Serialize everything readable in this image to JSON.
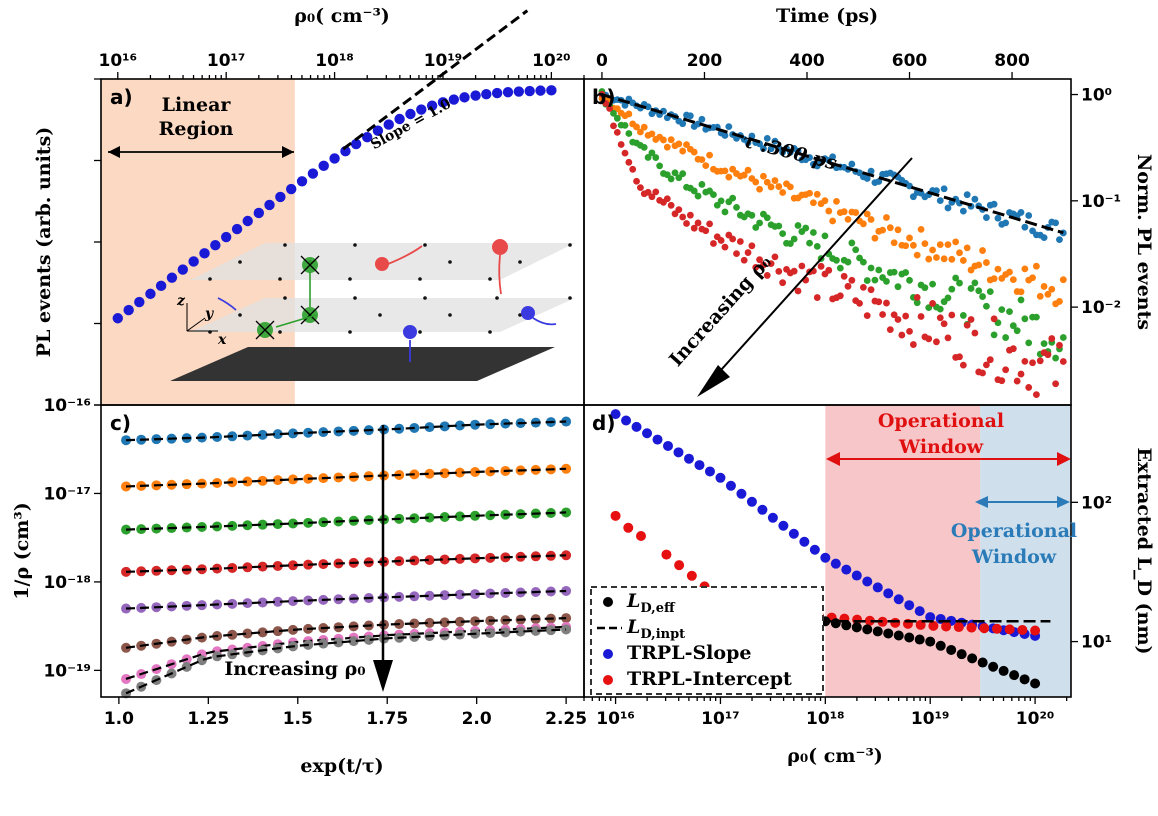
{
  "colors": {
    "blue": "#1f77b4",
    "orange": "#ff7f0e",
    "green": "#2ca02c",
    "red": "#d62728",
    "purple": "#9467bd",
    "brown": "#8c564b",
    "pink": "#e377c2",
    "gray": "#7f7f7f",
    "navy": "#1a1ad6",
    "scatter_red": "#e61010",
    "black": "#000000",
    "linear_region_fill": "#fbd9c2",
    "op_window_red_fill": "#f6c6c8",
    "op_window_blue_fill": "#cfdfec",
    "op_window_red_text": "#e01010",
    "op_window_blue_text": "#2a7bb8"
  },
  "chart_data": [
    {
      "id": "a",
      "type": "scatter",
      "panel_label": "a)",
      "xlabel": "ρ₀( cm⁻³)",
      "x_axis_position": "top",
      "xscale": "log",
      "xlim": [
        7000000000000000.0,
        2e+20
      ],
      "xticks": [
        "10¹⁶",
        "10¹⁷",
        "10¹⁸",
        "10¹⁹",
        "10²⁰"
      ],
      "ylabel": "PL events (arb. units)",
      "yscale": "log",
      "ylim": [
        0.001,
        10
      ],
      "annotations": [
        "Linear",
        "Region",
        "Slope = 1.0"
      ],
      "shaded_region_x": [
        7000000000000000.0,
        4.3e+17
      ],
      "series": [
        {
          "kind": "points",
          "color": "navy",
          "x": [
            1e+16,
            1.26e+16,
            1.58e+16,
            2e+16,
            2.51e+16,
            3.16e+16,
            3.98e+16,
            5.01e+16,
            6.31e+16,
            7.94e+16,
            1e+17,
            1.26e+17,
            1.58e+17,
            2e+17,
            2.51e+17,
            3.16e+17,
            3.98e+17,
            5.01e+17,
            6.31e+17,
            7.94e+17,
            1e+18,
            1.26e+18,
            1.58e+18,
            2e+18,
            2.51e+18,
            3.16e+18,
            3.98e+18,
            5.01e+18,
            6.31e+18,
            7.94e+18,
            1e+19,
            1.26e+19,
            1.58e+19,
            2e+19,
            2.51e+19,
            3.16e+19,
            3.98e+19,
            5.01e+19,
            6.31e+19,
            7.94e+19,
            1e+20
          ],
          "y": [
            0.0116,
            0.0146,
            0.0183,
            0.0231,
            0.029,
            0.0365,
            0.0459,
            0.0577,
            0.0726,
            0.0913,
            0.115,
            0.144,
            0.181,
            0.227,
            0.285,
            0.357,
            0.446,
            0.556,
            0.692,
            0.86,
            1.06,
            1.3,
            1.59,
            1.93,
            2.32,
            2.76,
            3.23,
            3.72,
            4.22,
            4.71,
            5.17,
            5.59,
            5.95,
            6.26,
            6.51,
            6.72,
            6.89,
            7.02,
            7.12,
            7.2,
            7.26
          ]
        },
        {
          "kind": "dashed_line",
          "color": "black",
          "x": [
            1.2e+18,
            6e+19
          ],
          "y": [
            1.38,
            69
          ]
        }
      ]
    },
    {
      "id": "b",
      "type": "scatter",
      "panel_label": "b)",
      "xlabel": "Time (ps)",
      "x_axis_position": "top",
      "xlim": [
        -35,
        915
      ],
      "xticks": [
        0,
        200,
        400,
        600,
        800
      ],
      "ylabel": "Norm. PL events",
      "y_axis_position": "right",
      "yscale": "log",
      "ylim": [
        0.0012,
        1.4
      ],
      "yticks": [
        "10⁰",
        "10⁻¹",
        "10⁻²"
      ],
      "annotations": [
        "τ :300 ps",
        "Increasing ρ₀"
      ],
      "series": [
        {
          "name": "",
          "color": "blue",
          "x": [
            0,
            75,
            150,
            225,
            300,
            375,
            450,
            525,
            600,
            675,
            750,
            825,
            900
          ],
          "y": [
            1,
            0.779,
            0.607,
            0.472,
            0.368,
            0.287,
            0.223,
            0.174,
            0.135,
            0.105,
            0.082,
            0.064,
            0.05
          ]
        },
        {
          "name": "",
          "color": "orange",
          "x": [
            0,
            75,
            150,
            225,
            300,
            375,
            450,
            525,
            600,
            675,
            750,
            825,
            900
          ],
          "y": [
            1,
            0.5,
            0.32,
            0.22,
            0.155,
            0.11,
            0.08,
            0.059,
            0.044,
            0.033,
            0.025,
            0.019,
            0.015
          ]
        },
        {
          "name": "",
          "color": "green",
          "x": [
            0,
            75,
            150,
            225,
            300,
            375,
            450,
            525,
            600,
            675,
            750,
            825,
            900
          ],
          "y": [
            1,
            0.3,
            0.16,
            0.1,
            0.068,
            0.047,
            0.034,
            0.024,
            0.018,
            0.013,
            0.0095,
            0.007,
            0.0052
          ]
        },
        {
          "name": "",
          "color": "red",
          "x": [
            0,
            75,
            150,
            225,
            300,
            375,
            450,
            525,
            600,
            675,
            750,
            825,
            900
          ],
          "y": [
            1,
            0.14,
            0.075,
            0.046,
            0.031,
            0.021,
            0.015,
            0.011,
            0.0078,
            0.0058,
            0.0043,
            0.0032,
            0.0024
          ]
        },
        {
          "name": "",
          "kind": "dashed_line",
          "color": "black",
          "x": [
            0,
            900
          ],
          "y": [
            1,
            0.05
          ]
        }
      ]
    },
    {
      "id": "c",
      "type": "scatter",
      "panel_label": "c)",
      "xlabel": "exp(t/τ)",
      "xlim": [
        0.95,
        2.3
      ],
      "xticks": [
        "1.0",
        "1.25",
        "1.5",
        "1.75",
        "2.0",
        "2.25"
      ],
      "ylabel": "1/ρ (cm³)",
      "yscale": "log",
      "ylim": [
        5e-20,
        1e-16
      ],
      "yticks": [
        "10⁻¹⁶",
        "10⁻¹⁷",
        "10⁻¹⁸",
        "10⁻¹⁹"
      ],
      "annotations": [
        "Increasing ρ₀"
      ],
      "series": [
        {
          "name": "",
          "color": "blue",
          "x": [
            1.02,
            1.25,
            1.5,
            1.75,
            2.0,
            2.25
          ],
          "y": [
            4e-17,
            4.3e-17,
            4.8e-17,
            5.3e-17,
            6e-17,
            6.5e-17
          ]
        },
        {
          "name": "",
          "color": "orange",
          "x": [
            1.02,
            1.25,
            1.5,
            1.75,
            2.0,
            2.25
          ],
          "y": [
            1.2e-17,
            1.3e-17,
            1.45e-17,
            1.6e-17,
            1.75e-17,
            1.9e-17
          ]
        },
        {
          "name": "",
          "color": "green",
          "x": [
            1.02,
            1.25,
            1.5,
            1.75,
            2.0,
            2.25
          ],
          "y": [
            3.9e-18,
            4.2e-18,
            4.6e-18,
            5.1e-18,
            5.6e-18,
            6.1e-18
          ]
        },
        {
          "name": "",
          "color": "red",
          "x": [
            1.02,
            1.25,
            1.5,
            1.75,
            2.0,
            2.25
          ],
          "y": [
            1.3e-18,
            1.4e-18,
            1.55e-18,
            1.7e-18,
            1.85e-18,
            2e-18
          ]
        },
        {
          "name": "",
          "color": "purple",
          "x": [
            1.02,
            1.25,
            1.5,
            1.75,
            2.0,
            2.25
          ],
          "y": [
            5e-19,
            5.5e-19,
            6.1e-19,
            6.7e-19,
            7.3e-19,
            7.9e-19
          ]
        },
        {
          "name": "",
          "color": "brown",
          "x": [
            1.02,
            1.25,
            1.5,
            1.75,
            2.0,
            2.25
          ],
          "y": [
            1.8e-19,
            2.4e-19,
            2.9e-19,
            3.3e-19,
            3.6e-19,
            3.9e-19
          ]
        },
        {
          "name": "",
          "color": "pink",
          "x": [
            1.02,
            1.25,
            1.5,
            1.75,
            2.0,
            2.25
          ],
          "y": [
            8e-20,
            1.6e-19,
            2.1e-19,
            2.5e-19,
            2.8e-19,
            3.1e-19
          ]
        },
        {
          "name": "",
          "color": "gray",
          "x": [
            1.02,
            1.25,
            1.5,
            1.75,
            2.0,
            2.25
          ],
          "y": [
            5.5e-20,
            1.4e-19,
            1.9e-19,
            2.3e-19,
            2.6e-19,
            2.9e-19
          ]
        }
      ]
    },
    {
      "id": "d",
      "type": "scatter",
      "panel_label": "d)",
      "xlabel": "ρ₀( cm⁻³)",
      "xscale": "log",
      "xlim": [
        5000000000000000.0,
        2.2e+20
      ],
      "xticks": [
        "10¹⁶",
        "10¹⁷",
        "10¹⁸",
        "10¹⁹",
        "10²⁰"
      ],
      "ylabel": "Extracted L_D (nm)",
      "y_axis_position": "right",
      "yscale": "log",
      "ylim": [
        4,
        500
      ],
      "yticks": [
        "10²",
        "10¹"
      ],
      "shaded_regions": [
        {
          "x": [
            1e+18,
            3e+19
          ],
          "fill": "op_window_red_fill",
          "label_lines": [
            "Operational",
            "Window"
          ],
          "label_color": "op_window_red_text"
        },
        {
          "x": [
            3e+19,
            2.2e+20
          ],
          "fill": "op_window_blue_fill",
          "label_lines": [
            "Operational",
            "Window"
          ],
          "label_color": "op_window_blue_text"
        }
      ],
      "legend": {
        "placement": "lower-left",
        "entries": [
          {
            "marker": "dot",
            "color": "black",
            "label_main": "L",
            "label_sub": "D,eff"
          },
          {
            "marker": "dash",
            "color": "black",
            "label_main": "L",
            "label_sub": "D,inpt"
          },
          {
            "marker": "dot",
            "color": "navy",
            "label_main": "TRPL-Slope",
            "label_sub": ""
          },
          {
            "marker": "dot",
            "color": "scatter_red",
            "label_main": "TRPL-Intercept",
            "label_sub": ""
          }
        ]
      },
      "series": [
        {
          "name": "TRPL-Slope",
          "color": "navy",
          "x": [
            1e+16,
            1e+17,
            1e+18,
            1e+19,
            1e+20
          ],
          "y": [
            430,
            150,
            40,
            15,
            11
          ]
        },
        {
          "name": "TRPL-Intercept",
          "color": "scatter_red",
          "x": [
            1e+16,
            1.5e+16,
            2e+16,
            1e+17,
            1e+18,
            1e+19,
            1e+20
          ],
          "y": [
            80,
            60,
            55,
            20,
            15,
            13,
            12
          ]
        },
        {
          "name": "L_D,eff",
          "color": "black",
          "x": [
            1e+16,
            1e+17,
            1e+18,
            1e+19,
            1e+20
          ],
          "y": [
            14,
            14,
            14,
            10,
            5
          ]
        },
        {
          "name": "L_D,inpt",
          "kind": "dashed_line",
          "color": "black",
          "x": [
            1e+16,
            1.4e+20
          ],
          "y": [
            14,
            14
          ]
        }
      ]
    }
  ]
}
